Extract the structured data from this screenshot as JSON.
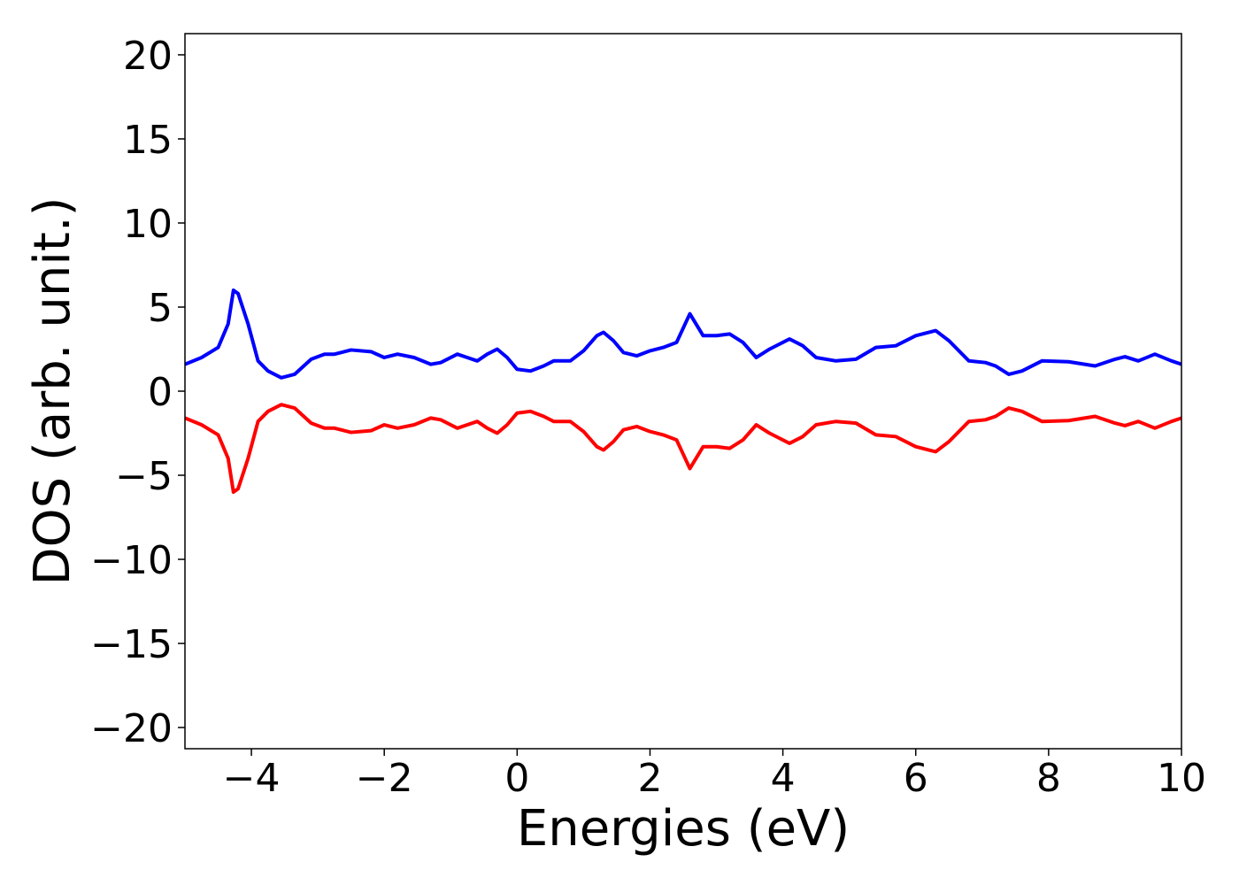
{
  "chart_data": {
    "type": "line",
    "xlabel": "Energies (eV)",
    "ylabel": "DOS (arb. unit.)",
    "x": [
      -5,
      -4.75,
      -4.5,
      -4.35,
      -4.27,
      -4.2,
      -4.05,
      -3.9,
      -3.75,
      -3.55,
      -3.35,
      -3.1,
      -2.9,
      -2.75,
      -2.5,
      -2.2,
      -2.0,
      -1.8,
      -1.55,
      -1.3,
      -1.15,
      -0.9,
      -0.75,
      -0.6,
      -0.45,
      -0.3,
      -0.15,
      0.0,
      0.2,
      0.4,
      0.55,
      0.8,
      1.0,
      1.2,
      1.3,
      1.45,
      1.6,
      1.8,
      2.0,
      2.2,
      2.4,
      2.6,
      2.8,
      3.0,
      3.2,
      3.4,
      3.6,
      3.8,
      4.1,
      4.3,
      4.5,
      4.8,
      5.1,
      5.4,
      5.7,
      6.0,
      6.3,
      6.5,
      6.8,
      7.05,
      7.2,
      7.4,
      7.6,
      7.9,
      8.3,
      8.7,
      9.0,
      9.15,
      9.35,
      9.6,
      9.85,
      10
    ],
    "series": [
      {
        "color": "#0000ff",
        "values": [
          1.6,
          2.0,
          2.6,
          4.0,
          6.0,
          5.8,
          4.0,
          1.8,
          1.2,
          0.8,
          1.0,
          1.9,
          2.2,
          2.2,
          2.45,
          2.35,
          2.0,
          2.2,
          2.0,
          1.6,
          1.7,
          2.2,
          2.0,
          1.8,
          2.2,
          2.5,
          2.0,
          1.3,
          1.2,
          1.5,
          1.8,
          1.8,
          2.4,
          3.3,
          3.5,
          3.0,
          2.3,
          2.1,
          2.4,
          2.6,
          2.9,
          4.6,
          3.3,
          3.3,
          3.4,
          2.9,
          2.0,
          2.5,
          3.1,
          2.7,
          2.0,
          1.8,
          1.9,
          2.6,
          2.7,
          3.3,
          3.6,
          3.0,
          1.8,
          1.7,
          1.5,
          1.0,
          1.2,
          1.8,
          1.75,
          1.5,
          1.9,
          2.05,
          1.8,
          2.2,
          1.8,
          1.6
        ]
      },
      {
        "color": "#ff0000",
        "values": [
          -1.6,
          -2.0,
          -2.6,
          -4.0,
          -6.0,
          -5.8,
          -4.0,
          -1.8,
          -1.2,
          -0.8,
          -1.0,
          -1.9,
          -2.2,
          -2.2,
          -2.45,
          -2.35,
          -2.0,
          -2.2,
          -2.0,
          -1.6,
          -1.7,
          -2.2,
          -2.0,
          -1.8,
          -2.2,
          -2.5,
          -2.0,
          -1.3,
          -1.2,
          -1.5,
          -1.8,
          -1.8,
          -2.4,
          -3.3,
          -3.5,
          -3.0,
          -2.3,
          -2.1,
          -2.4,
          -2.6,
          -2.9,
          -4.6,
          -3.3,
          -3.3,
          -3.4,
          -2.9,
          -2.0,
          -2.5,
          -3.1,
          -2.7,
          -2.0,
          -1.8,
          -1.9,
          -2.6,
          -2.7,
          -3.3,
          -3.6,
          -3.0,
          -1.8,
          -1.7,
          -1.5,
          -1.0,
          -1.2,
          -1.8,
          -1.75,
          -1.5,
          -1.9,
          -2.05,
          -1.8,
          -2.2,
          -1.8,
          -1.6
        ]
      }
    ],
    "xlim": [
      -5,
      10
    ],
    "xticks": [
      {
        "value": -4,
        "label": "−4"
      },
      {
        "value": -2,
        "label": "−2"
      },
      0,
      2,
      4,
      6,
      8,
      10
    ],
    "ylim": [
      -21.26,
      21.26
    ],
    "yticks": [
      {
        "value": -20,
        "label": "−20"
      },
      {
        "value": -15,
        "label": "−15"
      },
      {
        "value": -10,
        "label": "−10"
      },
      {
        "value": -5,
        "label": "−5"
      },
      0,
      5,
      10,
      15,
      20
    ]
  }
}
